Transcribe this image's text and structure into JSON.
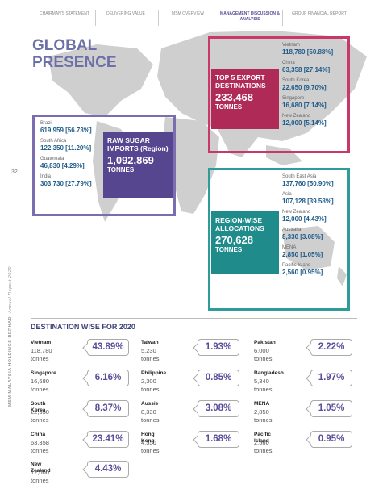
{
  "header": {
    "nav": [
      "CHAIRMAN'S STATEMENT",
      "DELIVERING VALUE",
      "MSM OVERVIEW",
      "MANAGEMENT DISCUSSION & ANALYSIS",
      "GROUP FINANCIAL REPORT"
    ]
  },
  "page_number": "32",
  "side_text": "MSM MALAYSIA HOLDINGS BERHAD",
  "side_subtext": "Annual Report 2020",
  "title": "GLOBAL PRESENCE",
  "raw_sugar": {
    "label": "RAW SUGAR IMPORTS (Region)",
    "total": "1,092,869",
    "unit": "TONNES",
    "items": [
      {
        "name": "Brazil",
        "value": "619,959 [56.73%]"
      },
      {
        "name": "South Africa",
        "value": "122,350 [11.20%]"
      },
      {
        "name": "Guatemala",
        "value": "46,830 [4.29%]"
      },
      {
        "name": "India",
        "value": "303,730 [27.79%]"
      }
    ]
  },
  "top_export": {
    "label": "TOP 5 EXPORT DESTINATIONS",
    "total": "233,468",
    "unit": "TONNES",
    "items": [
      {
        "name": "Vietnam",
        "value": "118,780 [50.88%]"
      },
      {
        "name": "China",
        "value": "63,358 [27.14%]"
      },
      {
        "name": "South Korea",
        "value": "22,650 [9.70%]"
      },
      {
        "name": "Singapore",
        "value": "16,680 [7.14%]"
      },
      {
        "name": "New Zealand",
        "value": "12,000 [5.14%]"
      }
    ]
  },
  "region_wise": {
    "label": "REGION-WISE ALLOCATIONS",
    "total": "270,628",
    "unit": "TONNES",
    "items": [
      {
        "name": "South East Asia",
        "value": "137,760 [50.90%]"
      },
      {
        "name": "Asia",
        "value": "107,128 [39.58%]"
      },
      {
        "name": "New Zealand",
        "value": "12,000 [4.43%]"
      },
      {
        "name": "Australia",
        "value": "8,330 [3.08%]"
      },
      {
        "name": "MENA",
        "value": "2,850 [1.05%]"
      },
      {
        "name": "Pacific Island",
        "value": "2,560 [0.95%]"
      }
    ]
  },
  "destinations": {
    "title": "DESTINATION WISE FOR 2020",
    "columns": [
      [
        {
          "name": "Vietnam",
          "tonnes": "118,780 tonnes",
          "share": "43.89%"
        },
        {
          "name": "Singapore",
          "tonnes": "16,680 tonnes",
          "share": "6.16%"
        },
        {
          "name": "South Korea",
          "tonnes": "22,650 tonnes",
          "share": "8.37%"
        },
        {
          "name": "China",
          "tonnes": "63,358 tonnes",
          "share": "23.41%"
        },
        {
          "name": "New Zealand",
          "tonnes": "12,000 tonnes",
          "share": "4.43%"
        }
      ],
      [
        {
          "name": "Taiwan",
          "tonnes": "5,230 tonnes",
          "share": "1.93%"
        },
        {
          "name": "Philippine",
          "tonnes": "2,300 tonnes",
          "share": "0.85%"
        },
        {
          "name": "Aussie",
          "tonnes": "8,330 tonnes",
          "share": "3.08%"
        },
        {
          "name": "Hong Kong",
          "tonnes": "4,550 tonnes",
          "share": "1.68%"
        }
      ],
      [
        {
          "name": "Pakistan",
          "tonnes": "6,000 tonnes",
          "share": "2.22%"
        },
        {
          "name": "Bangladesh",
          "tonnes": "5,340 tonnes",
          "share": "1.97%"
        },
        {
          "name": "MENA",
          "tonnes": "2,850 tonnes",
          "share": "1.05%"
        },
        {
          "name": "Pacific Island",
          "tonnes": "2,560 tonnes",
          "share": "0.95%"
        }
      ]
    ]
  }
}
